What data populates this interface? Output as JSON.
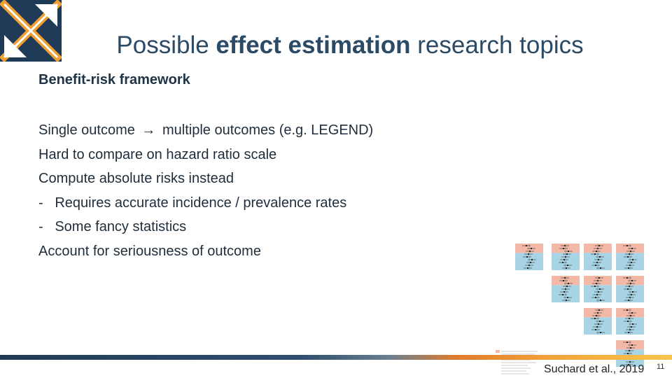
{
  "title": {
    "part1": "Possible ",
    "bold": "effect estimation",
    "part2": " research topics"
  },
  "section_heading": "Benefit-risk framework",
  "lines": [
    {
      "before": "Single outcome ",
      "arrow": "→",
      "after": " multiple outcomes (e.g. LEGEND)"
    },
    {
      "text": "Hard to compare on hazard ratio scale"
    },
    {
      "text": "Compute absolute risks instead"
    },
    {
      "text": "-   Requires accurate incidence / prevalence rates"
    },
    {
      "text": "-   Some fancy statistics"
    },
    {
      "text": "Account for seriousness of outcome"
    }
  ],
  "citation": "Suchard et al., 2019",
  "page_number": "11",
  "colors": {
    "title": "#2b4a66",
    "logo_dark": "#1f3a56",
    "logo_orange": "#f0a030",
    "panel_red": "#f4b9a6",
    "panel_blue": "#a8d4e6"
  }
}
